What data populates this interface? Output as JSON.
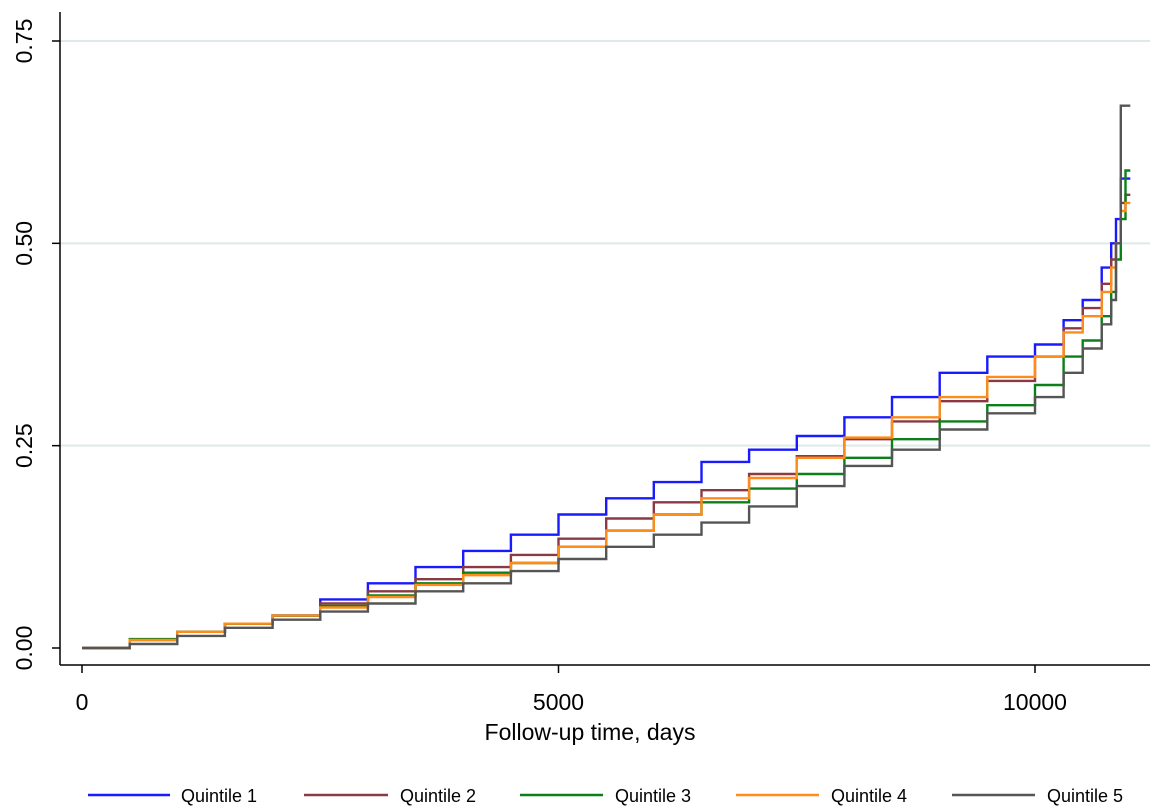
{
  "chart_data": {
    "type": "line",
    "title": "",
    "xlabel": "Follow-up time, days",
    "ylabel": "",
    "xlim": [
      -150,
      11250
    ],
    "ylim": [
      -0.02,
      0.78
    ],
    "xticks": [
      {
        "value": 0,
        "label": "0"
      },
      {
        "value": 5000,
        "label": "5000"
      },
      {
        "value": 10000,
        "label": "10000"
      }
    ],
    "yticks": [
      {
        "value": 0.0,
        "label": "0.00"
      },
      {
        "value": 0.25,
        "label": "0.25"
      },
      {
        "value": 0.5,
        "label": "0.50"
      },
      {
        "value": 0.75,
        "label": "0.75"
      }
    ],
    "grid": "horizontal",
    "legend_position": "bottom",
    "series": [
      {
        "name": "Quintile 1",
        "color": "#1a1aff",
        "x": [
          0,
          500,
          1000,
          1500,
          2000,
          2500,
          3000,
          3500,
          4000,
          4500,
          5000,
          5500,
          6000,
          6500,
          7000,
          7500,
          8000,
          8500,
          9000,
          9500,
          10000,
          10300,
          10500,
          10700,
          10800,
          10850,
          10900,
          10950,
          11000
        ],
        "values": [
          0,
          0.01,
          0.02,
          0.03,
          0.04,
          0.06,
          0.08,
          0.1,
          0.12,
          0.14,
          0.165,
          0.185,
          0.205,
          0.23,
          0.245,
          0.262,
          0.285,
          0.31,
          0.34,
          0.36,
          0.375,
          0.405,
          0.43,
          0.47,
          0.5,
          0.53,
          0.58,
          0.58,
          0.58
        ]
      },
      {
        "name": "Quintile 2",
        "color": "#8b3a45",
        "x": [
          0,
          500,
          1000,
          1500,
          2000,
          2500,
          3000,
          3500,
          4000,
          4500,
          5000,
          5500,
          6000,
          6500,
          7000,
          7500,
          8000,
          8500,
          9000,
          9500,
          10000,
          10300,
          10500,
          10700,
          10800,
          10850,
          10900,
          10950,
          11000
        ],
        "values": [
          0,
          0.01,
          0.02,
          0.03,
          0.04,
          0.055,
          0.07,
          0.085,
          0.1,
          0.115,
          0.135,
          0.16,
          0.18,
          0.195,
          0.215,
          0.237,
          0.258,
          0.28,
          0.305,
          0.33,
          0.36,
          0.395,
          0.42,
          0.45,
          0.48,
          0.5,
          0.55,
          0.56,
          0.56
        ]
      },
      {
        "name": "Quintile 3",
        "color": "#0b7f19",
        "x": [
          0,
          500,
          1000,
          1500,
          2000,
          2500,
          3000,
          3500,
          4000,
          4500,
          5000,
          5500,
          6000,
          6500,
          7000,
          7500,
          8000,
          8500,
          9000,
          9500,
          10000,
          10300,
          10500,
          10700,
          10800,
          10850,
          10900,
          10950,
          11000
        ],
        "values": [
          0,
          0.011,
          0.02,
          0.03,
          0.04,
          0.052,
          0.065,
          0.08,
          0.093,
          0.105,
          0.125,
          0.145,
          0.165,
          0.18,
          0.197,
          0.215,
          0.235,
          0.258,
          0.28,
          0.3,
          0.325,
          0.36,
          0.38,
          0.41,
          0.44,
          0.48,
          0.53,
          0.59,
          0.59
        ]
      },
      {
        "name": "Quintile 4",
        "color": "#ff8c1a",
        "x": [
          0,
          500,
          1000,
          1500,
          2000,
          2500,
          3000,
          3500,
          4000,
          4500,
          5000,
          5500,
          6000,
          6500,
          7000,
          7500,
          8000,
          8500,
          9000,
          9500,
          10000,
          10300,
          10500,
          10700,
          10800,
          10850,
          10900,
          10950,
          11000
        ],
        "values": [
          0,
          0.01,
          0.02,
          0.03,
          0.04,
          0.05,
          0.063,
          0.078,
          0.09,
          0.105,
          0.125,
          0.145,
          0.165,
          0.185,
          0.21,
          0.235,
          0.26,
          0.285,
          0.31,
          0.335,
          0.36,
          0.39,
          0.41,
          0.44,
          0.47,
          0.5,
          0.54,
          0.55,
          0.55
        ]
      },
      {
        "name": "Quintile 5",
        "color": "#555555",
        "x": [
          0,
          500,
          1000,
          1500,
          2000,
          2500,
          3000,
          3500,
          4000,
          4500,
          5000,
          5500,
          6000,
          6500,
          7000,
          7500,
          8000,
          8500,
          9000,
          9500,
          10000,
          10300,
          10500,
          10700,
          10800,
          10850,
          10900,
          10950,
          11000
        ],
        "values": [
          0,
          0.005,
          0.015,
          0.025,
          0.035,
          0.045,
          0.055,
          0.07,
          0.08,
          0.095,
          0.11,
          0.125,
          0.14,
          0.155,
          0.175,
          0.2,
          0.225,
          0.245,
          0.27,
          0.29,
          0.31,
          0.34,
          0.37,
          0.4,
          0.43,
          0.5,
          0.67,
          0.67,
          0.67
        ]
      }
    ]
  }
}
